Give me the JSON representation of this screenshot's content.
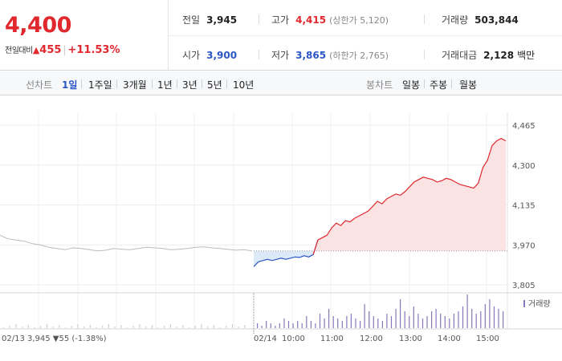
{
  "summary": {
    "price": "4,400",
    "change_label": "전일대비",
    "change_value": "455",
    "change_pct": "+11.53%"
  },
  "stats": {
    "prev_close": {
      "label": "전일",
      "value": "3,945"
    },
    "open": {
      "label": "시가",
      "value": "3,900"
    },
    "high": {
      "label": "고가",
      "value": "4,415",
      "sub": "(상한가 5,120)"
    },
    "low": {
      "label": "저가",
      "value": "3,865",
      "sub": "(하한가 2,765)"
    },
    "volume": {
      "label": "거래량",
      "value": "503,844"
    },
    "amount": {
      "label": "거래대금",
      "value": "2,128",
      "unit": "백만"
    }
  },
  "tabs": {
    "line_label": "선차트",
    "line_items": [
      "1일",
      "1주일",
      "3개월",
      "1년",
      "3년",
      "5년",
      "10년"
    ],
    "active_index": 0,
    "candle_label": "봉차트",
    "candle_items": [
      "일봉",
      "주봉",
      "월봉"
    ]
  },
  "colors": {
    "up": "#e0282e",
    "down": "#2a56c6",
    "prev": "#bbbbbb",
    "up_fill": "#fbe3e3",
    "down_fill": "#dce9f7",
    "volume": "#8877bb"
  },
  "chart_data": {
    "type": "line",
    "y_ticks": [
      "4,465",
      "4,300",
      "4,135",
      "3,970",
      "3,805"
    ],
    "ylim": [
      3805,
      4465
    ],
    "reference_price": 3945,
    "prev_day": {
      "date": "02/13",
      "summary": "3,945 ▼55 (-1.38%)",
      "values": [
        4010,
        3995,
        3990,
        3985,
        3975,
        3970,
        3960,
        3955,
        3950,
        3958,
        3955,
        3950,
        3945,
        3948,
        3955,
        3952,
        3950,
        3955,
        3960,
        3958,
        3955,
        3950,
        3952,
        3955,
        3960,
        3962,
        3958,
        3955,
        3952,
        3948,
        3950,
        3945
      ]
    },
    "today": {
      "date": "02/14",
      "x_labels": [
        "10:00",
        "11:00",
        "12:00",
        "13:00",
        "14:00",
        "15:00"
      ],
      "values": [
        3880,
        3900,
        3905,
        3910,
        3905,
        3910,
        3915,
        3910,
        3915,
        3920,
        3918,
        3925,
        3920,
        3930,
        3990,
        4000,
        4010,
        4040,
        4060,
        4050,
        4070,
        4065,
        4080,
        4090,
        4100,
        4110,
        4130,
        4150,
        4140,
        4160,
        4170,
        4180,
        4175,
        4190,
        4210,
        4230,
        4240,
        4250,
        4245,
        4240,
        4230,
        4235,
        4245,
        4240,
        4230,
        4220,
        4215,
        4210,
        4205,
        4225,
        4290,
        4320,
        4380,
        4400,
        4410,
        4400
      ]
    },
    "volume_legend": "거래량",
    "volume": [
      2,
      1,
      3,
      2,
      1,
      2,
      4,
      3,
      2,
      3,
      2,
      5,
      3,
      2,
      6,
      4,
      8,
      5,
      4,
      3,
      5,
      6,
      4,
      3,
      10,
      7,
      5,
      4,
      3,
      6,
      5,
      8,
      12,
      7,
      5,
      9,
      6,
      4,
      5,
      7,
      8,
      6,
      5,
      4,
      6,
      7,
      9,
      14,
      8,
      6,
      7,
      10,
      12,
      9,
      8,
      7
    ]
  }
}
